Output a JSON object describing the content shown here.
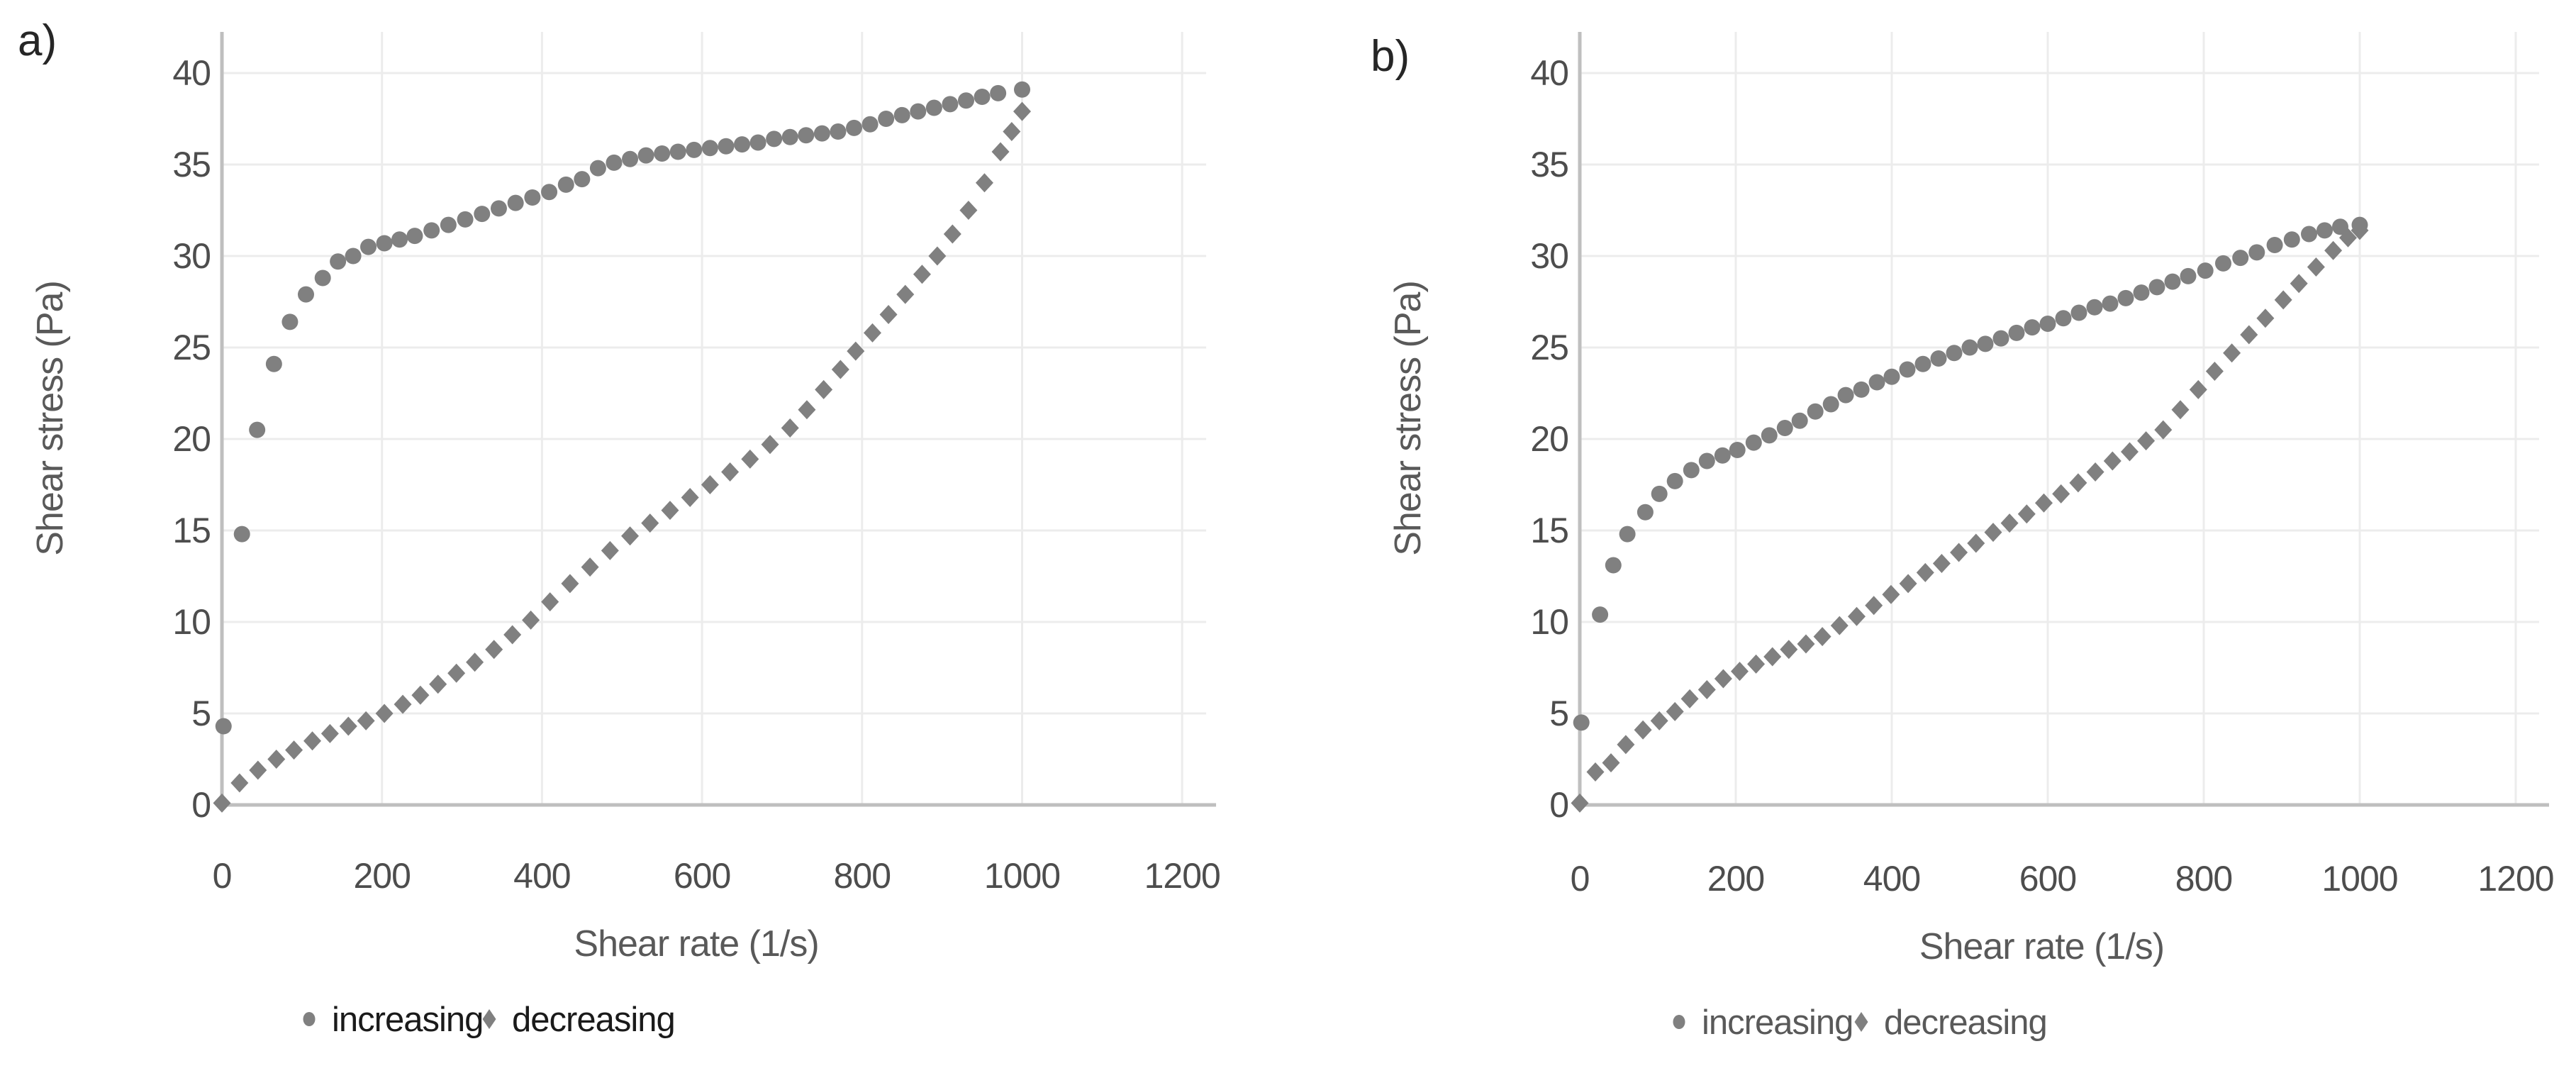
{
  "figure_title": "",
  "colors": {
    "background": "#ffffff",
    "marker": "#808080",
    "gridline": "#ececec",
    "axis_line": "#bfbfbf",
    "tick_text": "#4d4d4d",
    "axis_title_text": "#595959",
    "panel_label_text": "#262626",
    "legend_text_a": "#1a1a1a",
    "legend_text_b": "#595959"
  },
  "chart_data": [
    {
      "id": "a",
      "panel_label": "a)",
      "type": "scatter",
      "xlabel": "Shear rate (1/s)",
      "ylabel": "Shear stress (Pa)",
      "xlim": [
        0,
        1230
      ],
      "ylim": [
        0,
        42.3
      ],
      "xticks": [
        0,
        200,
        400,
        600,
        800,
        1000,
        1200
      ],
      "yticks": [
        0,
        5,
        10,
        15,
        20,
        25,
        30,
        35,
        40
      ],
      "grid": true,
      "legend_position": "bottom-center",
      "series": [
        {
          "name": "increasing",
          "marker": "circle",
          "color": "#808080",
          "label_color": "#1a1a1a",
          "points": [
            [
              2,
              4.3
            ],
            [
              25,
              14.8
            ],
            [
              44,
              20.5
            ],
            [
              65,
              24.1
            ],
            [
              85,
              26.4
            ],
            [
              105,
              27.9
            ],
            [
              126,
              28.8
            ],
            [
              145,
              29.7
            ],
            [
              164,
              30.0
            ],
            [
              183,
              30.5
            ],
            [
              203,
              30.7
            ],
            [
              222,
              30.9
            ],
            [
              241,
              31.1
            ],
            [
              262,
              31.4
            ],
            [
              283,
              31.7
            ],
            [
              304,
              32.0
            ],
            [
              325,
              32.3
            ],
            [
              346,
              32.6
            ],
            [
              367,
              32.9
            ],
            [
              388,
              33.2
            ],
            [
              409,
              33.5
            ],
            [
              430,
              33.9
            ],
            [
              450,
              34.2
            ],
            [
              470,
              34.8
            ],
            [
              490,
              35.1
            ],
            [
              510,
              35.3
            ],
            [
              530,
              35.5
            ],
            [
              550,
              35.6
            ],
            [
              570,
              35.7
            ],
            [
              590,
              35.8
            ],
            [
              610,
              35.9
            ],
            [
              630,
              36.0
            ],
            [
              650,
              36.1
            ],
            [
              670,
              36.2
            ],
            [
              690,
              36.4
            ],
            [
              710,
              36.5
            ],
            [
              730,
              36.6
            ],
            [
              750,
              36.7
            ],
            [
              770,
              36.8
            ],
            [
              790,
              37.0
            ],
            [
              810,
              37.2
            ],
            [
              830,
              37.5
            ],
            [
              850,
              37.7
            ],
            [
              870,
              37.9
            ],
            [
              890,
              38.1
            ],
            [
              910,
              38.3
            ],
            [
              930,
              38.5
            ],
            [
              950,
              38.7
            ],
            [
              970,
              38.9
            ],
            [
              1000,
              39.1
            ]
          ]
        },
        {
          "name": "decreasing",
          "marker": "diamond",
          "color": "#808080",
          "label_color": "#1a1a1a",
          "points": [
            [
              0,
              0.1
            ],
            [
              22,
              1.2
            ],
            [
              45,
              1.9
            ],
            [
              68,
              2.5
            ],
            [
              90,
              3.0
            ],
            [
              113,
              3.5
            ],
            [
              135,
              3.9
            ],
            [
              158,
              4.3
            ],
            [
              180,
              4.6
            ],
            [
              203,
              5.0
            ],
            [
              226,
              5.5
            ],
            [
              248,
              6.0
            ],
            [
              270,
              6.6
            ],
            [
              293,
              7.2
            ],
            [
              316,
              7.8
            ],
            [
              340,
              8.5
            ],
            [
              363,
              9.3
            ],
            [
              386,
              10.1
            ],
            [
              410,
              11.1
            ],
            [
              435,
              12.1
            ],
            [
              460,
              13.0
            ],
            [
              485,
              13.9
            ],
            [
              510,
              14.7
            ],
            [
              535,
              15.4
            ],
            [
              560,
              16.1
            ],
            [
              585,
              16.8
            ],
            [
              610,
              17.5
            ],
            [
              635,
              18.2
            ],
            [
              660,
              18.9
            ],
            [
              685,
              19.7
            ],
            [
              710,
              20.6
            ],
            [
              731,
              21.6
            ],
            [
              752,
              22.7
            ],
            [
              773,
              23.8
            ],
            [
              792,
              24.8
            ],
            [
              813,
              25.8
            ],
            [
              833,
              26.8
            ],
            [
              854,
              27.9
            ],
            [
              875,
              29.0
            ],
            [
              894,
              30.0
            ],
            [
              913,
              31.2
            ],
            [
              933,
              32.5
            ],
            [
              953,
              34.0
            ],
            [
              973,
              35.7
            ],
            [
              987,
              36.8
            ],
            [
              1000,
              37.9
            ]
          ]
        }
      ]
    },
    {
      "id": "b",
      "panel_label": "b)",
      "type": "scatter",
      "xlabel": "Shear rate (1/s)",
      "ylabel": "Shear stress  (Pa)",
      "xlim": [
        0,
        1230
      ],
      "ylim": [
        0,
        42.3
      ],
      "xticks": [
        0,
        200,
        400,
        600,
        800,
        1000,
        1200
      ],
      "yticks": [
        0,
        5,
        10,
        15,
        20,
        25,
        30,
        35,
        40
      ],
      "grid": true,
      "legend_position": "bottom-center",
      "series": [
        {
          "name": "increasing",
          "marker": "circle",
          "color": "#808080",
          "label_color": "#595959",
          "points": [
            [
              2,
              4.5
            ],
            [
              26,
              10.4
            ],
            [
              43,
              13.1
            ],
            [
              61,
              14.8
            ],
            [
              84,
              16.0
            ],
            [
              102,
              17.0
            ],
            [
              122,
              17.7
            ],
            [
              143,
              18.3
            ],
            [
              163,
              18.8
            ],
            [
              183,
              19.1
            ],
            [
              202,
              19.4
            ],
            [
              223,
              19.8
            ],
            [
              243,
              20.2
            ],
            [
              263,
              20.6
            ],
            [
              282,
              21.0
            ],
            [
              302,
              21.5
            ],
            [
              322,
              21.9
            ],
            [
              341,
              22.4
            ],
            [
              361,
              22.7
            ],
            [
              381,
              23.1
            ],
            [
              400,
              23.4
            ],
            [
              420,
              23.8
            ],
            [
              440,
              24.1
            ],
            [
              460,
              24.4
            ],
            [
              480,
              24.7
            ],
            [
              500,
              25.0
            ],
            [
              520,
              25.2
            ],
            [
              540,
              25.5
            ],
            [
              560,
              25.8
            ],
            [
              580,
              26.1
            ],
            [
              600,
              26.3
            ],
            [
              620,
              26.6
            ],
            [
              640,
              26.9
            ],
            [
              660,
              27.2
            ],
            [
              680,
              27.4
            ],
            [
              700,
              27.7
            ],
            [
              720,
              28.0
            ],
            [
              740,
              28.3
            ],
            [
              760,
              28.6
            ],
            [
              780,
              28.9
            ],
            [
              802,
              29.2
            ],
            [
              825,
              29.6
            ],
            [
              847,
              29.9
            ],
            [
              868,
              30.2
            ],
            [
              891,
              30.6
            ],
            [
              913,
              30.9
            ],
            [
              935,
              31.2
            ],
            [
              955,
              31.4
            ],
            [
              975,
              31.6
            ],
            [
              1000,
              31.7
            ]
          ]
        },
        {
          "name": "decreasing",
          "marker": "diamond",
          "color": "#808080",
          "label_color": "#595959",
          "points": [
            [
              0,
              0.1
            ],
            [
              20,
              1.8
            ],
            [
              40,
              2.3
            ],
            [
              59,
              3.3
            ],
            [
              81,
              4.1
            ],
            [
              102,
              4.6
            ],
            [
              122,
              5.1
            ],
            [
              141,
              5.8
            ],
            [
              163,
              6.3
            ],
            [
              184,
              6.9
            ],
            [
              205,
              7.3
            ],
            [
              226,
              7.7
            ],
            [
              247,
              8.1
            ],
            [
              268,
              8.5
            ],
            [
              290,
              8.8
            ],
            [
              311,
              9.2
            ],
            [
              333,
              9.8
            ],
            [
              355,
              10.3
            ],
            [
              377,
              10.9
            ],
            [
              399,
              11.5
            ],
            [
              421,
              12.1
            ],
            [
              443,
              12.7
            ],
            [
              464,
              13.2
            ],
            [
              486,
              13.8
            ],
            [
              508,
              14.3
            ],
            [
              530,
              14.9
            ],
            [
              551,
              15.4
            ],
            [
              573,
              15.9
            ],
            [
              595,
              16.5
            ],
            [
              617,
              17.0
            ],
            [
              639,
              17.6
            ],
            [
              661,
              18.2
            ],
            [
              683,
              18.8
            ],
            [
              705,
              19.3
            ],
            [
              726,
              19.9
            ],
            [
              748,
              20.5
            ],
            [
              770,
              21.6
            ],
            [
              793,
              22.7
            ],
            [
              814,
              23.7
            ],
            [
              836,
              24.7
            ],
            [
              858,
              25.7
            ],
            [
              879,
              26.6
            ],
            [
              902,
              27.6
            ],
            [
              922,
              28.5
            ],
            [
              944,
              29.4
            ],
            [
              966,
              30.3
            ],
            [
              985,
              31.0
            ],
            [
              1000,
              31.4
            ]
          ]
        }
      ]
    }
  ]
}
